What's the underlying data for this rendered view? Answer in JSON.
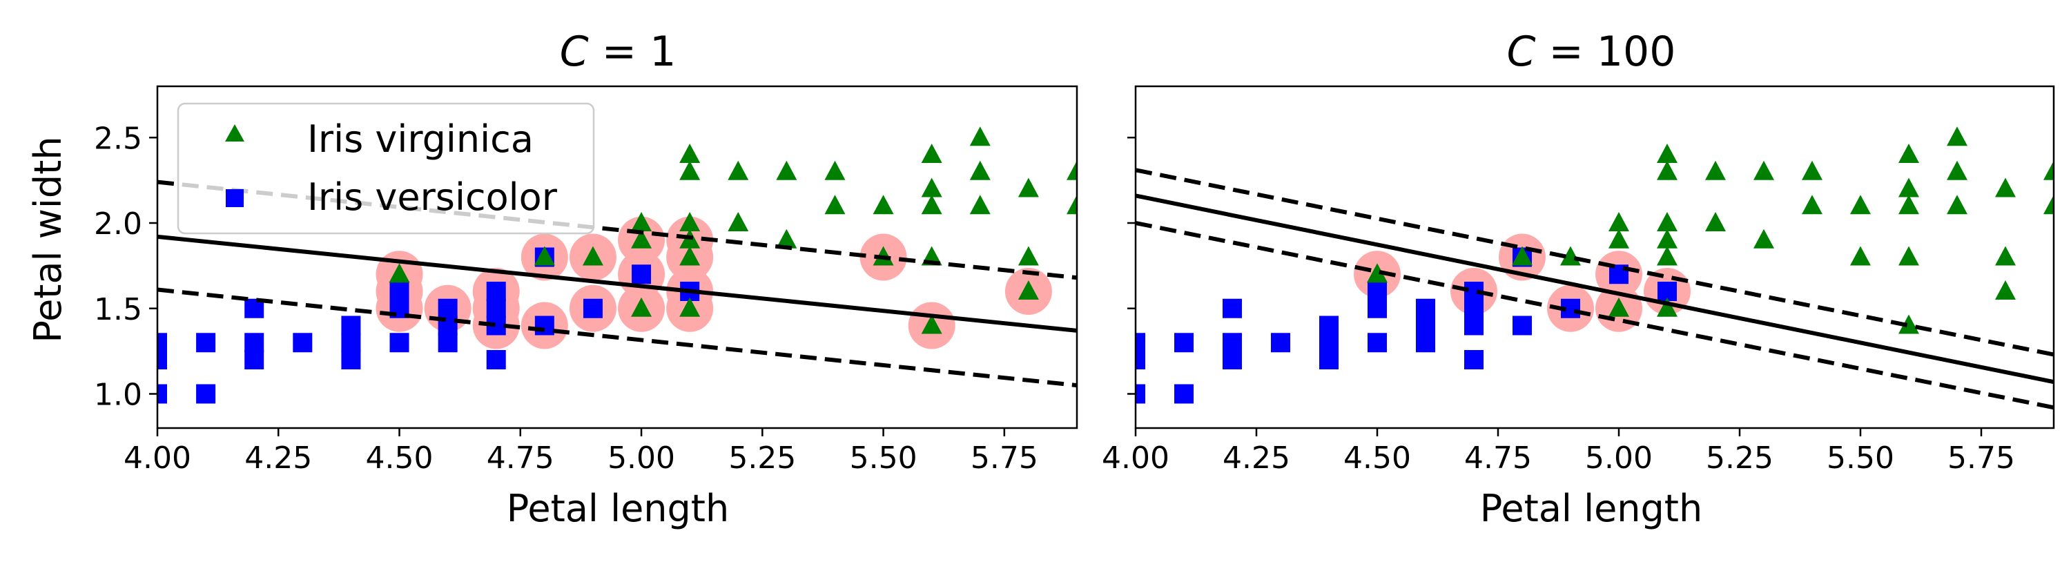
{
  "chart_data": [
    {
      "type": "scatter",
      "title": "C = 1",
      "title_var": "C",
      "title_rest": " = 1",
      "xlabel": "Petal length",
      "ylabel": "Petal width",
      "xlim": [
        4.0,
        5.9
      ],
      "ylim": [
        0.8,
        2.8
      ],
      "xticks": [
        "4.00",
        "4.25",
        "4.50",
        "4.75",
        "5.00",
        "5.25",
        "5.50",
        "5.75"
      ],
      "yticks": [
        "1.0",
        "1.5",
        "2.0",
        "2.5"
      ],
      "legend_position": "top-left",
      "legend": [
        {
          "label": "Iris virginica",
          "marker": "triangle",
          "color": "#008000"
        },
        {
          "label": "Iris versicolor",
          "marker": "square",
          "color": "#0000ff"
        }
      ],
      "decision_boundary": {
        "x": [
          4.0,
          5.9
        ],
        "y": [
          1.92,
          1.37
        ]
      },
      "margin_upper": {
        "x": [
          4.0,
          5.9
        ],
        "y": [
          2.24,
          1.68
        ]
      },
      "margin_lower": {
        "x": [
          4.0,
          5.9
        ],
        "y": [
          1.61,
          1.05
        ]
      },
      "support_vectors": [
        [
          4.5,
          1.5
        ],
        [
          4.5,
          1.6
        ],
        [
          4.5,
          1.7
        ],
        [
          4.6,
          1.5
        ],
        [
          4.7,
          1.4
        ],
        [
          4.7,
          1.5
        ],
        [
          4.7,
          1.6
        ],
        [
          4.8,
          1.4
        ],
        [
          4.8,
          1.8
        ],
        [
          4.9,
          1.5
        ],
        [
          4.9,
          1.8
        ],
        [
          5.0,
          1.5
        ],
        [
          5.0,
          1.7
        ],
        [
          5.0,
          1.9
        ],
        [
          5.1,
          1.5
        ],
        [
          5.1,
          1.6
        ],
        [
          5.1,
          1.8
        ],
        [
          5.1,
          1.9
        ],
        [
          5.5,
          1.8
        ],
        [
          5.6,
          1.4
        ],
        [
          5.8,
          1.6
        ]
      ]
    },
    {
      "type": "scatter",
      "title": "C = 100",
      "title_var": "C",
      "title_rest": " = 100",
      "xlabel": "Petal length",
      "ylabel": "",
      "xlim": [
        4.0,
        5.9
      ],
      "ylim": [
        0.8,
        2.8
      ],
      "xticks": [
        "4.00",
        "4.25",
        "4.50",
        "4.75",
        "5.00",
        "5.25",
        "5.50",
        "5.75"
      ],
      "yticks": [],
      "decision_boundary": {
        "x": [
          4.0,
          5.9
        ],
        "y": [
          2.16,
          1.07
        ]
      },
      "margin_upper": {
        "x": [
          4.0,
          5.9
        ],
        "y": [
          2.31,
          1.23
        ]
      },
      "margin_lower": {
        "x": [
          4.0,
          5.9
        ],
        "y": [
          2.0,
          0.92
        ]
      },
      "support_vectors": [
        [
          4.5,
          1.7
        ],
        [
          4.7,
          1.6
        ],
        [
          4.8,
          1.8
        ],
        [
          4.9,
          1.5
        ],
        [
          5.0,
          1.7
        ],
        [
          5.0,
          1.5
        ],
        [
          5.1,
          1.6
        ]
      ]
    }
  ],
  "series": {
    "versicolor": {
      "name": "Iris versicolor",
      "color": "#0000ff",
      "points": [
        [
          4.0,
          1.0
        ],
        [
          4.0,
          1.2
        ],
        [
          4.0,
          1.3
        ],
        [
          4.1,
          1.0
        ],
        [
          4.1,
          1.3
        ],
        [
          4.2,
          1.2
        ],
        [
          4.2,
          1.3
        ],
        [
          4.2,
          1.5
        ],
        [
          4.3,
          1.3
        ],
        [
          4.4,
          1.2
        ],
        [
          4.4,
          1.3
        ],
        [
          4.4,
          1.4
        ],
        [
          4.5,
          1.3
        ],
        [
          4.5,
          1.5
        ],
        [
          4.5,
          1.6
        ],
        [
          4.6,
          1.3
        ],
        [
          4.6,
          1.4
        ],
        [
          4.6,
          1.5
        ],
        [
          4.7,
          1.2
        ],
        [
          4.7,
          1.4
        ],
        [
          4.7,
          1.5
        ],
        [
          4.7,
          1.6
        ],
        [
          4.8,
          1.4
        ],
        [
          4.8,
          1.8
        ],
        [
          4.9,
          1.5
        ],
        [
          5.0,
          1.7
        ],
        [
          5.1,
          1.6
        ]
      ]
    },
    "virginica": {
      "name": "Iris virginica",
      "color": "#008000",
      "points": [
        [
          4.5,
          1.7
        ],
        [
          4.8,
          1.8
        ],
        [
          4.9,
          1.8
        ],
        [
          5.0,
          1.5
        ],
        [
          5.0,
          1.9
        ],
        [
          5.0,
          2.0
        ],
        [
          5.1,
          1.5
        ],
        [
          5.1,
          1.8
        ],
        [
          5.1,
          1.9
        ],
        [
          5.1,
          2.0
        ],
        [
          5.1,
          2.3
        ],
        [
          5.1,
          2.4
        ],
        [
          5.2,
          2.0
        ],
        [
          5.2,
          2.3
        ],
        [
          5.3,
          1.9
        ],
        [
          5.3,
          2.3
        ],
        [
          5.4,
          2.1
        ],
        [
          5.4,
          2.3
        ],
        [
          5.5,
          1.8
        ],
        [
          5.5,
          2.1
        ],
        [
          5.6,
          1.4
        ],
        [
          5.6,
          1.8
        ],
        [
          5.6,
          2.1
        ],
        [
          5.6,
          2.2
        ],
        [
          5.6,
          2.4
        ],
        [
          5.7,
          2.1
        ],
        [
          5.7,
          2.3
        ],
        [
          5.7,
          2.5
        ],
        [
          5.8,
          1.6
        ],
        [
          5.8,
          1.8
        ],
        [
          5.8,
          2.2
        ],
        [
          5.9,
          2.1
        ],
        [
          5.9,
          2.3
        ]
      ]
    }
  },
  "colors": {
    "support_vector_highlight": "#ffaaaa",
    "line": "#000000",
    "legend_border": "#cccccc"
  }
}
